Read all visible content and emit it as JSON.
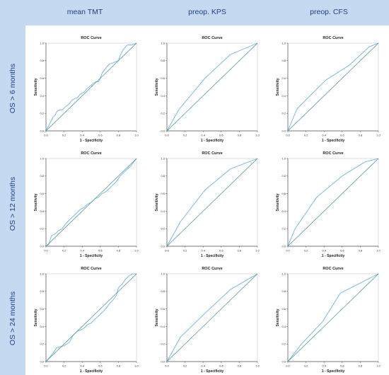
{
  "columns": [
    "mean TMT",
    "preop. KPS",
    "preop. CFS"
  ],
  "rows": [
    "OS > 6 months",
    "OS > 12 months",
    "OS > 24 months"
  ],
  "colors": {
    "band": "#c5daf0",
    "header_text": "#1f3f8a",
    "roc_line": "#6cb4e4",
    "reference_line": "#3d8f8a",
    "axis": "#555555"
  },
  "chart_data": [
    {
      "type": "line",
      "title": "ROC Curve",
      "xlabel": "1 - Specificity",
      "ylabel": "Sensitivity",
      "xlim": [
        0,
        1
      ],
      "ylim": [
        0,
        1
      ],
      "ticks": [
        "0.0",
        "0.2",
        "0.4",
        "0.6",
        "0.8",
        "1.0"
      ],
      "series": [
        {
          "x": [
            0,
            0.02,
            0.05,
            0.08,
            0.1,
            0.12,
            0.15,
            0.18,
            0.22,
            0.25,
            0.28,
            0.3,
            0.35,
            0.38,
            0.42,
            0.45,
            0.5,
            0.52,
            0.55,
            0.58,
            0.6,
            0.62,
            0.65,
            0.68,
            0.7,
            0.75,
            0.8,
            0.82,
            0.85,
            0.9,
            0.95,
            1
          ],
          "y": [
            0,
            0.04,
            0.1,
            0.16,
            0.18,
            0.22,
            0.24,
            0.24,
            0.28,
            0.3,
            0.34,
            0.36,
            0.38,
            0.42,
            0.44,
            0.48,
            0.52,
            0.54,
            0.56,
            0.56,
            0.6,
            0.66,
            0.7,
            0.74,
            0.76,
            0.78,
            0.8,
            0.86,
            0.92,
            0.98,
            0.98,
            1
          ]
        },
        {
          "x": [
            0,
            1
          ],
          "y": [
            0,
            1
          ]
        }
      ]
    },
    {
      "type": "line",
      "title": "ROC Curve",
      "xlabel": "1 - Specificity",
      "ylabel": "Sensitivity",
      "xlim": [
        0,
        1
      ],
      "ylim": [
        0,
        1
      ],
      "ticks": [
        "0.0",
        "0.2",
        "0.4",
        "0.6",
        "0.8",
        "1.0"
      ],
      "series": [
        {
          "x": [
            0,
            0.13,
            0.42,
            0.7,
            1
          ],
          "y": [
            0,
            0.24,
            0.6,
            0.87,
            1
          ]
        },
        {
          "x": [
            0,
            1
          ],
          "y": [
            0,
            1
          ]
        }
      ]
    },
    {
      "type": "line",
      "title": "ROC Curve",
      "xlabel": "1 - Specificity",
      "ylabel": "Sensitivity",
      "xlim": [
        0,
        1
      ],
      "ylim": [
        0,
        1
      ],
      "ticks": [
        "0.0",
        "0.2",
        "0.4",
        "0.6",
        "0.8",
        "1.0"
      ],
      "series": [
        {
          "x": [
            0,
            0.1,
            0.42,
            0.68,
            0.9,
            1
          ],
          "y": [
            0,
            0.25,
            0.58,
            0.75,
            0.96,
            1
          ]
        },
        {
          "x": [
            0,
            1
          ],
          "y": [
            0,
            1
          ]
        }
      ]
    },
    {
      "type": "line",
      "title": "ROC Curve",
      "xlabel": "1 - Specificity",
      "ylabel": "Sensitivity",
      "xlim": [
        0,
        1
      ],
      "ylim": [
        0,
        1
      ],
      "ticks": [
        "0.0",
        "0.2",
        "0.4",
        "0.6",
        "0.8",
        "1.0"
      ],
      "series": [
        {
          "x": [
            0,
            0.03,
            0.06,
            0.1,
            0.14,
            0.18,
            0.22,
            0.26,
            0.3,
            0.34,
            0.38,
            0.42,
            0.46,
            0.5,
            0.54,
            0.58,
            0.62,
            0.66,
            0.7,
            0.74,
            0.78,
            0.82,
            0.86,
            0.9,
            0.94,
            0.97,
            1
          ],
          "y": [
            0,
            0.02,
            0.12,
            0.14,
            0.18,
            0.2,
            0.26,
            0.3,
            0.34,
            0.38,
            0.42,
            0.44,
            0.48,
            0.5,
            0.54,
            0.56,
            0.6,
            0.62,
            0.66,
            0.7,
            0.74,
            0.8,
            0.84,
            0.88,
            0.92,
            0.96,
            1
          ]
        },
        {
          "x": [
            0,
            1
          ],
          "y": [
            0,
            1
          ]
        }
      ]
    },
    {
      "type": "line",
      "title": "ROC Curve",
      "xlabel": "1 - Specificity",
      "ylabel": "Sensitivity",
      "xlim": [
        0,
        1
      ],
      "ylim": [
        0,
        1
      ],
      "ticks": [
        "0.0",
        "0.2",
        "0.4",
        "0.6",
        "0.8",
        "1.0"
      ],
      "series": [
        {
          "x": [
            0,
            0.15,
            0.42,
            0.7,
            1
          ],
          "y": [
            0,
            0.28,
            0.64,
            0.88,
            1
          ]
        },
        {
          "x": [
            0,
            1
          ],
          "y": [
            0,
            1
          ]
        }
      ]
    },
    {
      "type": "line",
      "title": "ROC Curve",
      "xlabel": "1 - Specificity",
      "ylabel": "Sensitivity",
      "xlim": [
        0,
        1
      ],
      "ylim": [
        0,
        1
      ],
      "ticks": [
        "0.0",
        "0.2",
        "0.4",
        "0.6",
        "0.8",
        "1.0"
      ],
      "series": [
        {
          "x": [
            0,
            0.08,
            0.32,
            0.6,
            0.85,
            1
          ],
          "y": [
            0,
            0.2,
            0.56,
            0.8,
            0.96,
            1
          ]
        },
        {
          "x": [
            0,
            1
          ],
          "y": [
            0,
            1
          ]
        }
      ]
    },
    {
      "type": "line",
      "title": "ROC Curve",
      "xlabel": "1 - Specificity",
      "ylabel": "Sensitivity",
      "xlim": [
        0,
        1
      ],
      "ylim": [
        0,
        1
      ],
      "ticks": [
        "0.0",
        "0.2",
        "0.4",
        "0.6",
        "0.8",
        "1.0"
      ],
      "series": [
        {
          "x": [
            0,
            0.05,
            0.08,
            0.12,
            0.2,
            0.26,
            0.3,
            0.34,
            0.38,
            0.42,
            0.46,
            0.5,
            0.54,
            0.58,
            0.62,
            0.66,
            0.7,
            0.74,
            0.78,
            0.8,
            0.84,
            0.88,
            0.92,
            0.96,
            1
          ],
          "y": [
            0,
            0.06,
            0.1,
            0.16,
            0.18,
            0.22,
            0.3,
            0.34,
            0.36,
            0.38,
            0.42,
            0.44,
            0.48,
            0.52,
            0.56,
            0.6,
            0.66,
            0.7,
            0.76,
            0.84,
            0.88,
            0.94,
            0.98,
            1,
            1
          ]
        },
        {
          "x": [
            0,
            1
          ],
          "y": [
            0,
            1
          ]
        }
      ]
    },
    {
      "type": "line",
      "title": "ROC Curve",
      "xlabel": "1 - Specificity",
      "ylabel": "Sensitivity",
      "xlim": [
        0,
        1
      ],
      "ylim": [
        0,
        1
      ],
      "ticks": [
        "0.0",
        "0.2",
        "0.4",
        "0.6",
        "0.8",
        "1.0"
      ],
      "series": [
        {
          "x": [
            0,
            0.15,
            0.42,
            0.7,
            1
          ],
          "y": [
            0,
            0.28,
            0.55,
            0.82,
            1
          ]
        },
        {
          "x": [
            0,
            1
          ],
          "y": [
            0,
            1
          ]
        }
      ]
    },
    {
      "type": "line",
      "title": "ROC Curve",
      "xlabel": "1 - Specificity",
      "ylabel": "Sensitivity",
      "xlim": [
        0,
        1
      ],
      "ylim": [
        0,
        1
      ],
      "ticks": [
        "0.0",
        "0.2",
        "0.4",
        "0.6",
        "0.8",
        "1.0"
      ],
      "series": [
        {
          "x": [
            0,
            0.15,
            0.38,
            0.58,
            1
          ],
          "y": [
            0,
            0.2,
            0.45,
            0.78,
            1
          ]
        },
        {
          "x": [
            0,
            1
          ],
          "y": [
            0,
            1
          ]
        }
      ]
    }
  ]
}
